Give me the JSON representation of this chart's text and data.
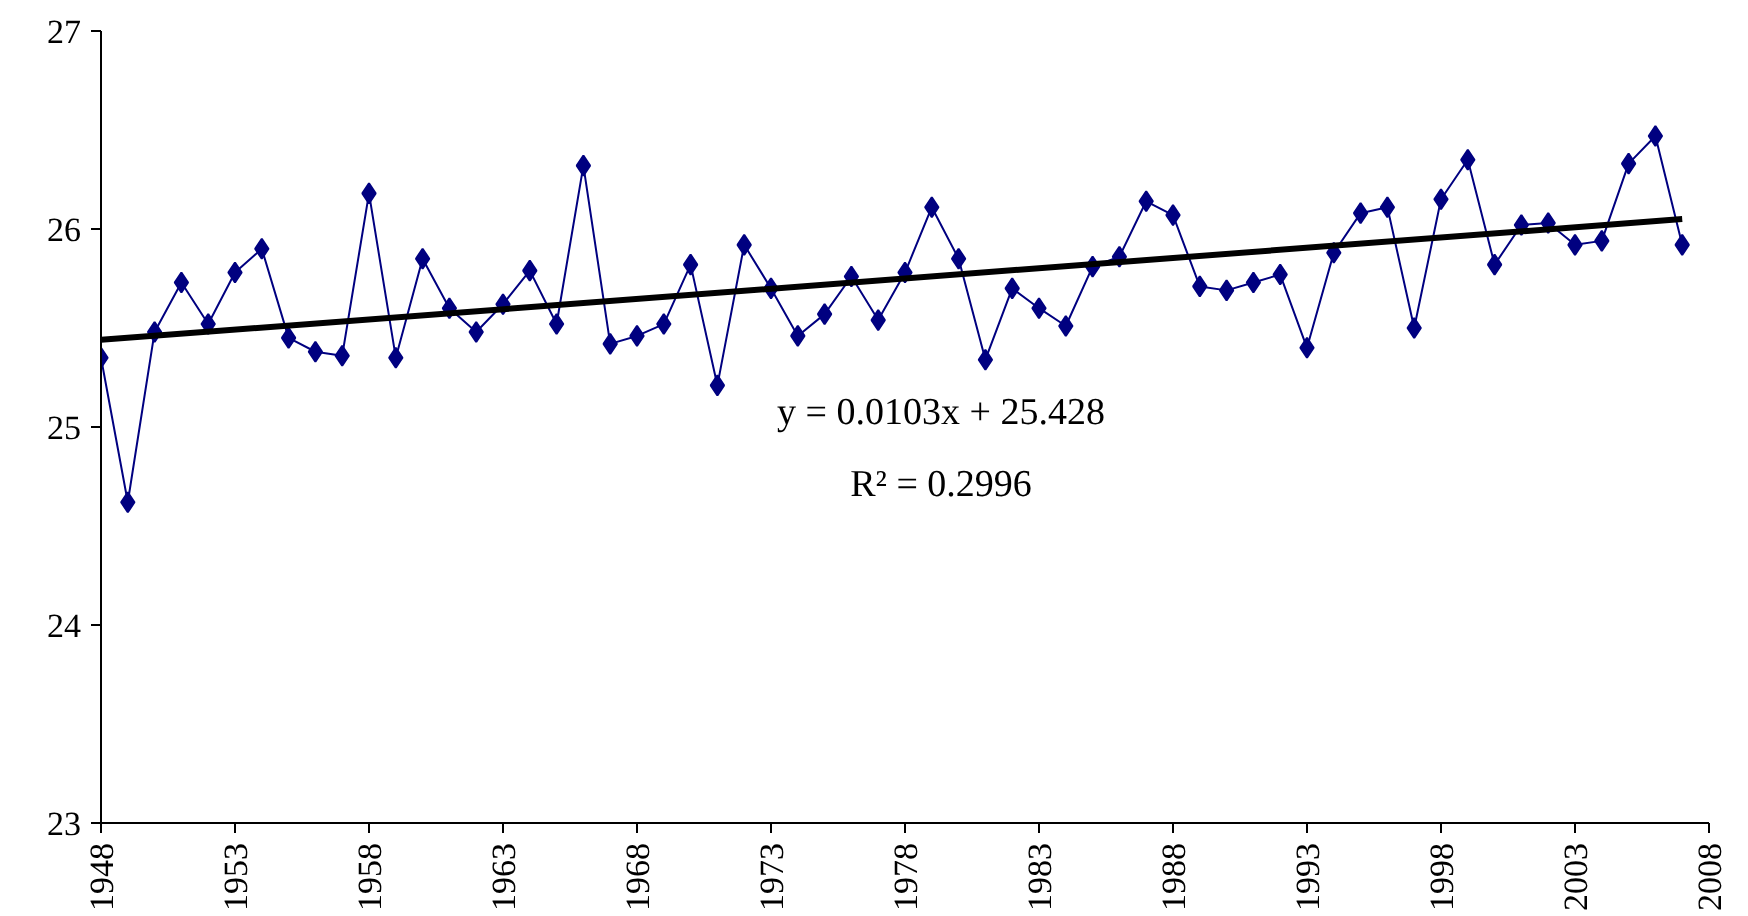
{
  "chart_data": {
    "type": "line",
    "x": [
      1948,
      1949,
      1950,
      1951,
      1952,
      1953,
      1954,
      1955,
      1956,
      1957,
      1958,
      1959,
      1960,
      1961,
      1962,
      1963,
      1964,
      1965,
      1966,
      1967,
      1968,
      1969,
      1970,
      1971,
      1972,
      1973,
      1974,
      1975,
      1976,
      1977,
      1978,
      1979,
      1980,
      1981,
      1982,
      1983,
      1984,
      1985,
      1986,
      1987,
      1988,
      1989,
      1990,
      1991,
      1992,
      1993,
      1994,
      1995,
      1996,
      1997,
      1998,
      1999,
      2000,
      2001,
      2002,
      2003,
      2004,
      2005,
      2006,
      2007
    ],
    "series": [
      {
        "color": "#000080",
        "marker": "diamond",
        "values": [
          25.35,
          24.62,
          25.48,
          25.73,
          25.52,
          25.78,
          25.9,
          25.45,
          25.38,
          25.36,
          26.18,
          25.35,
          25.85,
          25.6,
          25.48,
          25.62,
          25.79,
          25.52,
          26.32,
          25.42,
          25.46,
          25.52,
          25.82,
          25.21,
          25.92,
          25.7,
          25.46,
          25.57,
          25.76,
          25.54,
          25.78,
          26.11,
          25.85,
          25.34,
          25.7,
          25.6,
          25.51,
          25.81,
          25.86,
          26.14,
          26.07,
          25.71,
          25.69,
          25.73,
          25.77,
          25.4,
          25.88,
          26.08,
          26.11,
          25.5,
          26.15,
          26.35,
          25.82,
          26.02,
          26.03,
          25.92,
          25.94,
          26.33,
          26.47,
          25.92
        ]
      },
      {
        "type": "line",
        "color": "#000000",
        "marker": "none",
        "x": [
          1948,
          2007
        ],
        "values": [
          25.44,
          26.05
        ]
      }
    ],
    "xlim": [
      1948,
      2008
    ],
    "xticks": [
      1948,
      1953,
      1958,
      1963,
      1968,
      1973,
      1978,
      1983,
      1988,
      1993,
      1998,
      2003,
      2008
    ],
    "ylim": [
      23,
      27
    ],
    "yticks": [
      23,
      24,
      25,
      26,
      27
    ],
    "grid": false,
    "annotations": [
      "y = 0.0103x + 25.428",
      "R² = 0.2996"
    ]
  }
}
